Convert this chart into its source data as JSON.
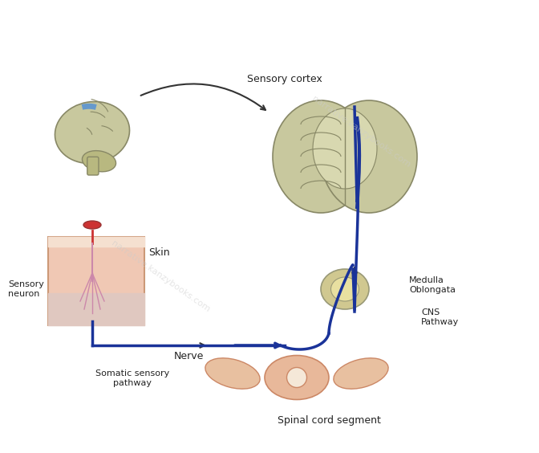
{
  "background_color": "#ffffff",
  "labels": {
    "sensory_cortex": "Sensory cortex",
    "medulla_oblongata": "Medulla\nOblongata",
    "cns_pathway": "CNS\nPathway",
    "skin": "Skin",
    "sensory_neuron": "Sensory\nneuron",
    "nerve": "Nerve",
    "somatic_sensory": "Somatic sensory\npathway",
    "spinal_cord": "Spinal cord segment"
  },
  "watermark_texts": [
    "narrative.kanzybooks.com",
    "narrative.kanzybooks.com"
  ],
  "brain_side_color": "#c8c89e",
  "brain_front_color": "#c8c89e",
  "cortex_highlight": "#6699cc",
  "nerve_path_color": "#1a3399",
  "skin_box_color": "#f0c8b4",
  "spinal_cord_color": "#e8b89a",
  "text_color": "#222222"
}
